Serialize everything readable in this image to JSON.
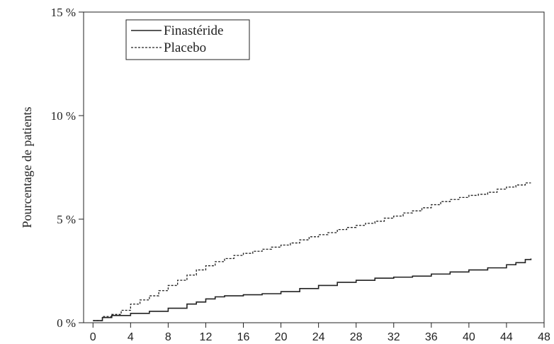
{
  "chart_data": {
    "type": "line",
    "title": "",
    "xlabel": "",
    "ylabel": "Pourcentage de patients",
    "xlim": [
      -1,
      48
    ],
    "ylim": [
      0,
      15
    ],
    "x_ticks": [
      0,
      4,
      8,
      12,
      16,
      20,
      24,
      28,
      32,
      36,
      40,
      44,
      48
    ],
    "y_ticks": [
      {
        "value": 0,
        "label": "0 %"
      },
      {
        "value": 5,
        "label": "5 %"
      },
      {
        "value": 10,
        "label": "10 %"
      },
      {
        "value": 15,
        "label": "15 %"
      }
    ],
    "grid": false,
    "legend_position": "top-left",
    "series": [
      {
        "name": "Finastéride",
        "style": "solid",
        "color": "#222222",
        "points": [
          [
            0,
            0.1
          ],
          [
            1,
            0.25
          ],
          [
            2,
            0.35
          ],
          [
            4,
            0.45
          ],
          [
            6,
            0.55
          ],
          [
            8,
            0.7
          ],
          [
            10,
            0.9
          ],
          [
            11,
            1.0
          ],
          [
            12,
            1.15
          ],
          [
            13,
            1.25
          ],
          [
            14,
            1.3
          ],
          [
            16,
            1.35
          ],
          [
            18,
            1.4
          ],
          [
            20,
            1.5
          ],
          [
            22,
            1.65
          ],
          [
            24,
            1.8
          ],
          [
            26,
            1.95
          ],
          [
            28,
            2.05
          ],
          [
            30,
            2.15
          ],
          [
            32,
            2.2
          ],
          [
            34,
            2.25
          ],
          [
            36,
            2.35
          ],
          [
            38,
            2.45
          ],
          [
            40,
            2.55
          ],
          [
            42,
            2.65
          ],
          [
            44,
            2.8
          ],
          [
            45,
            2.9
          ],
          [
            46,
            3.05
          ],
          [
            46.6,
            3.1
          ]
        ]
      },
      {
        "name": "Placebo",
        "style": "dashed",
        "color": "#222222",
        "points": [
          [
            0,
            0.1
          ],
          [
            1,
            0.3
          ],
          [
            2,
            0.4
          ],
          [
            3,
            0.6
          ],
          [
            4,
            0.9
          ],
          [
            5,
            1.1
          ],
          [
            6,
            1.3
          ],
          [
            7,
            1.55
          ],
          [
            8,
            1.8
          ],
          [
            9,
            2.05
          ],
          [
            10,
            2.3
          ],
          [
            11,
            2.55
          ],
          [
            12,
            2.75
          ],
          [
            13,
            2.95
          ],
          [
            14,
            3.1
          ],
          [
            15,
            3.25
          ],
          [
            16,
            3.35
          ],
          [
            17,
            3.45
          ],
          [
            18,
            3.55
          ],
          [
            19,
            3.65
          ],
          [
            20,
            3.75
          ],
          [
            21,
            3.85
          ],
          [
            22,
            4.0
          ],
          [
            23,
            4.15
          ],
          [
            24,
            4.25
          ],
          [
            25,
            4.35
          ],
          [
            26,
            4.5
          ],
          [
            27,
            4.6
          ],
          [
            28,
            4.7
          ],
          [
            29,
            4.8
          ],
          [
            30,
            4.9
          ],
          [
            31,
            5.05
          ],
          [
            32,
            5.15
          ],
          [
            33,
            5.3
          ],
          [
            34,
            5.4
          ],
          [
            35,
            5.55
          ],
          [
            36,
            5.7
          ],
          [
            37,
            5.85
          ],
          [
            38,
            5.95
          ],
          [
            39,
            6.05
          ],
          [
            40,
            6.15
          ],
          [
            41,
            6.2
          ],
          [
            42,
            6.3
          ],
          [
            43,
            6.45
          ],
          [
            44,
            6.55
          ],
          [
            45,
            6.65
          ],
          [
            46,
            6.75
          ],
          [
            46.6,
            6.75
          ]
        ]
      }
    ]
  }
}
